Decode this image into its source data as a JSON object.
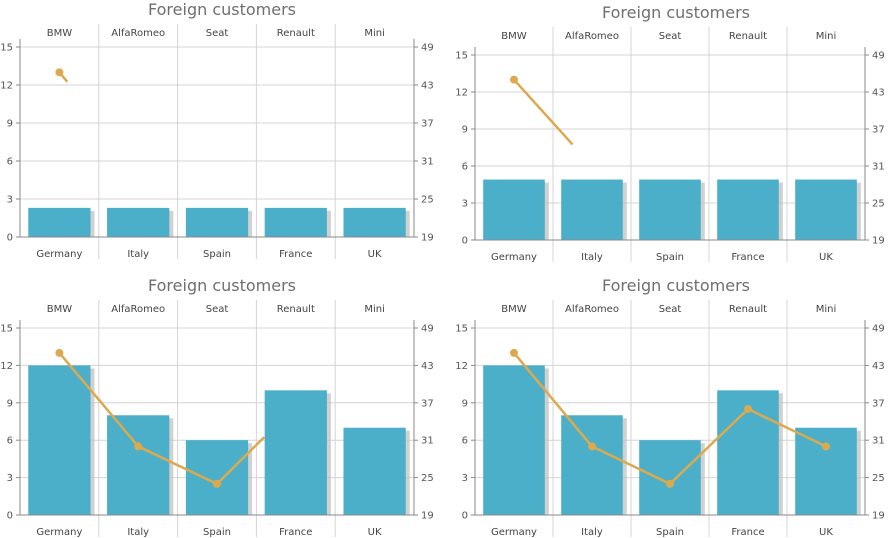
{
  "chart_data": [
    {
      "type": "bar",
      "title": "Foreign customers",
      "categories": [
        "Germany",
        "Italy",
        "Spain",
        "France",
        "UK"
      ],
      "top_categories": [
        "BMW",
        "AlfaRomeo",
        "Seat",
        "Renault",
        "Mini"
      ],
      "ylim": [
        0,
        15
      ],
      "yticks": [
        0,
        3,
        6,
        9,
        12,
        15
      ],
      "y2lim": [
        19,
        49
      ],
      "y2ticks": [
        19,
        25,
        31,
        37,
        43,
        49
      ],
      "bar_values": [
        2.3,
        2.3,
        2.3,
        2.3,
        2.3
      ],
      "line_values": [
        45,
        43.5
      ],
      "line_x_positions": [
        0,
        0.1
      ],
      "colors": {
        "bar": "#4bafc9",
        "line": "#dcaa4e"
      }
    },
    {
      "type": "bar",
      "title": "Foreign customers",
      "categories": [
        "Germany",
        "Italy",
        "Spain",
        "France",
        "UK"
      ],
      "top_categories": [
        "BMW",
        "AlfaRomeo",
        "Seat",
        "Renault",
        "Mini"
      ],
      "ylim": [
        0,
        15
      ],
      "yticks": [
        0,
        3,
        6,
        9,
        12,
        15
      ],
      "y2lim": [
        19,
        49
      ],
      "y2ticks": [
        19,
        25,
        31,
        37,
        43,
        49
      ],
      "bar_values": [
        4.9,
        4.9,
        4.9,
        4.9,
        4.9
      ],
      "line_values": [
        45,
        34.5
      ],
      "line_x_positions": [
        0,
        0.75
      ],
      "colors": {
        "bar": "#4bafc9",
        "line": "#dcaa4e"
      }
    },
    {
      "type": "bar",
      "title": "Foreign customers",
      "categories": [
        "Germany",
        "Italy",
        "Spain",
        "France",
        "UK"
      ],
      "top_categories": [
        "BMW",
        "AlfaRomeo",
        "Seat",
        "Renault",
        "Mini"
      ],
      "ylim": [
        0,
        15
      ],
      "yticks": [
        0,
        3,
        6,
        9,
        12,
        15
      ],
      "y2lim": [
        19,
        49
      ],
      "y2ticks": [
        19,
        25,
        31,
        37,
        43,
        49
      ],
      "bar_values": [
        12,
        8,
        6,
        10,
        7
      ],
      "line_values": [
        45,
        30,
        24,
        31.5
      ],
      "line_x_positions": [
        0,
        1,
        2,
        2.6
      ],
      "colors": {
        "bar": "#4bafc9",
        "line": "#dcaa4e"
      }
    },
    {
      "type": "bar",
      "title": "Foreign customers",
      "categories": [
        "Germany",
        "Italy",
        "Spain",
        "France",
        "UK"
      ],
      "top_categories": [
        "BMW",
        "AlfaRomeo",
        "Seat",
        "Renault",
        "Mini"
      ],
      "ylim": [
        0,
        15
      ],
      "yticks": [
        0,
        3,
        6,
        9,
        12,
        15
      ],
      "y2lim": [
        19,
        49
      ],
      "y2ticks": [
        19,
        25,
        31,
        37,
        43,
        49
      ],
      "bar_values": [
        12,
        8,
        6,
        10,
        7
      ],
      "line_values": [
        45,
        30,
        24,
        36,
        30
      ],
      "line_x_positions": [
        0,
        1,
        2,
        3,
        4
      ],
      "colors": {
        "bar": "#4bafc9",
        "line": "#dcaa4e"
      }
    }
  ]
}
